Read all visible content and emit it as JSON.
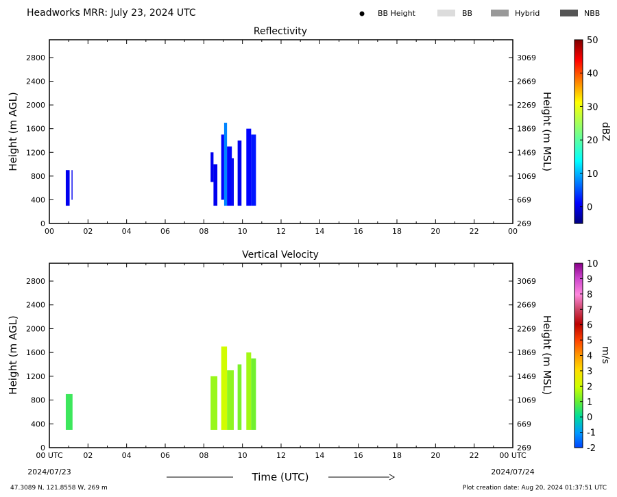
{
  "header": {
    "title": "Headworks MRR:  July 23, 2024 UTC",
    "legend": [
      {
        "label": "BB Height",
        "symbol": "dot",
        "color": "#000000"
      },
      {
        "label": "BB",
        "symbol": "patch",
        "color": "#dcdcdc"
      },
      {
        "label": "Hybrid",
        "symbol": "patch",
        "color": "#999999"
      },
      {
        "label": "NBB",
        "symbol": "patch",
        "color": "#555555"
      }
    ]
  },
  "footer": {
    "location": "47.3089 N, 121.8558 W, 269 m",
    "created": "Plot creation date: Aug 20, 2024 01:37:51 UTC",
    "xlabel": "Time (UTC)",
    "start_date": "2024/07/23",
    "end_date": "2024/07/24"
  },
  "chart_data": [
    {
      "type": "heatmap",
      "title": "Reflectivity",
      "xlabel": "",
      "ylabel": "Height (m AGL)",
      "ylabel_right": "Height (m MSL)",
      "xlim": [
        0,
        24
      ],
      "ylim": [
        0,
        3100
      ],
      "x_ticks": [
        "00",
        "02",
        "04",
        "06",
        "08",
        "10",
        "12",
        "14",
        "16",
        "18",
        "20",
        "22",
        "00"
      ],
      "y_ticks": [
        0,
        400,
        800,
        1200,
        1600,
        2000,
        2400,
        2800
      ],
      "y_ticks_right": [
        269,
        669,
        1069,
        1469,
        1869,
        2269,
        2669,
        3069
      ],
      "colorbar": {
        "label": "dBZ",
        "min": -5,
        "max": 50,
        "ticks": [
          0,
          10,
          20,
          30,
          40,
          50
        ],
        "colormap": "jet"
      },
      "echoes": [
        {
          "x": [
            0.85,
            1.05
          ],
          "y": [
            300,
            900
          ],
          "value": 1
        },
        {
          "x": [
            1.15,
            1.2
          ],
          "y": [
            400,
            900
          ],
          "value": 1
        },
        {
          "x": [
            8.35,
            8.5
          ],
          "y": [
            700,
            1200
          ],
          "value": 1
        },
        {
          "x": [
            8.5,
            8.7
          ],
          "y": [
            300,
            1000
          ],
          "value": 1
        },
        {
          "x": [
            8.9,
            9.05
          ],
          "y": [
            400,
            1500
          ],
          "value": 2
        },
        {
          "x": [
            9.05,
            9.2
          ],
          "y": [
            300,
            1700
          ],
          "value": 9
        },
        {
          "x": [
            9.2,
            9.45
          ],
          "y": [
            300,
            1300
          ],
          "value": 2
        },
        {
          "x": [
            9.45,
            9.55
          ],
          "y": [
            300,
            1100
          ],
          "value": 1
        },
        {
          "x": [
            9.75,
            9.95
          ],
          "y": [
            300,
            1400
          ],
          "value": 1
        },
        {
          "x": [
            10.2,
            10.45
          ],
          "y": [
            300,
            1600
          ],
          "value": 2
        },
        {
          "x": [
            10.45,
            10.7
          ],
          "y": [
            300,
            1500
          ],
          "value": 3
        }
      ]
    },
    {
      "type": "heatmap",
      "title": "Vertical Velocity",
      "xlabel": "Time (UTC)",
      "ylabel": "Height (m AGL)",
      "ylabel_right": "Height (m MSL)",
      "xlim": [
        0,
        24
      ],
      "ylim": [
        0,
        3100
      ],
      "x_ticks": [
        "00 UTC",
        "02",
        "04",
        "06",
        "08",
        "10",
        "12",
        "14",
        "16",
        "18",
        "20",
        "22",
        "00 UTC"
      ],
      "y_ticks": [
        0,
        400,
        800,
        1200,
        1600,
        2000,
        2400,
        2800
      ],
      "y_ticks_right": [
        269,
        669,
        1069,
        1469,
        1869,
        2269,
        2669,
        3069
      ],
      "colorbar": {
        "label": "m/s",
        "min": -2,
        "max": 10,
        "ticks": [
          -2,
          -1,
          0,
          1,
          2,
          3,
          4,
          5,
          6,
          7,
          8,
          9,
          10
        ],
        "colormap": "velocity"
      },
      "echoes": [
        {
          "x": [
            0.85,
            1.2
          ],
          "y": [
            300,
            900
          ],
          "value": 0.6
        },
        {
          "x": [
            8.35,
            8.7
          ],
          "y": [
            300,
            1200
          ],
          "value": 1.5
        },
        {
          "x": [
            8.9,
            9.2
          ],
          "y": [
            300,
            1700
          ],
          "value": 2.1
        },
        {
          "x": [
            9.2,
            9.55
          ],
          "y": [
            300,
            1300
          ],
          "value": 1.4
        },
        {
          "x": [
            9.75,
            9.95
          ],
          "y": [
            300,
            1400
          ],
          "value": 1.2
        },
        {
          "x": [
            10.2,
            10.45
          ],
          "y": [
            300,
            1600
          ],
          "value": 1.6
        },
        {
          "x": [
            10.45,
            10.7
          ],
          "y": [
            300,
            1500
          ],
          "value": 1.1
        }
      ]
    }
  ]
}
